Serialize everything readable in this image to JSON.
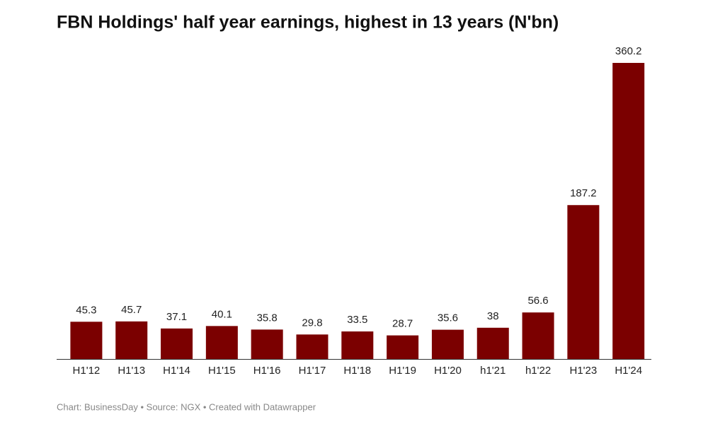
{
  "chart_data": {
    "type": "bar",
    "title": "FBN Holdings' half year earnings, highest in 13 years (N'bn)",
    "categories": [
      "H1'12",
      "H1'13",
      "H1'14",
      "H1'15",
      "H1'16",
      "H1'17",
      "H1'18",
      "H1'19",
      "H1'20",
      "h1'21",
      "h1'22",
      "H1'23",
      "H1'24"
    ],
    "values": [
      45.3,
      45.7,
      37.1,
      40.1,
      35.8,
      29.8,
      33.5,
      28.7,
      35.6,
      38,
      56.6,
      187.2,
      360.2
    ],
    "color": "#7b0000",
    "source": "Chart: BusinessDay • Source: NGX • Created with Datawrapper"
  }
}
